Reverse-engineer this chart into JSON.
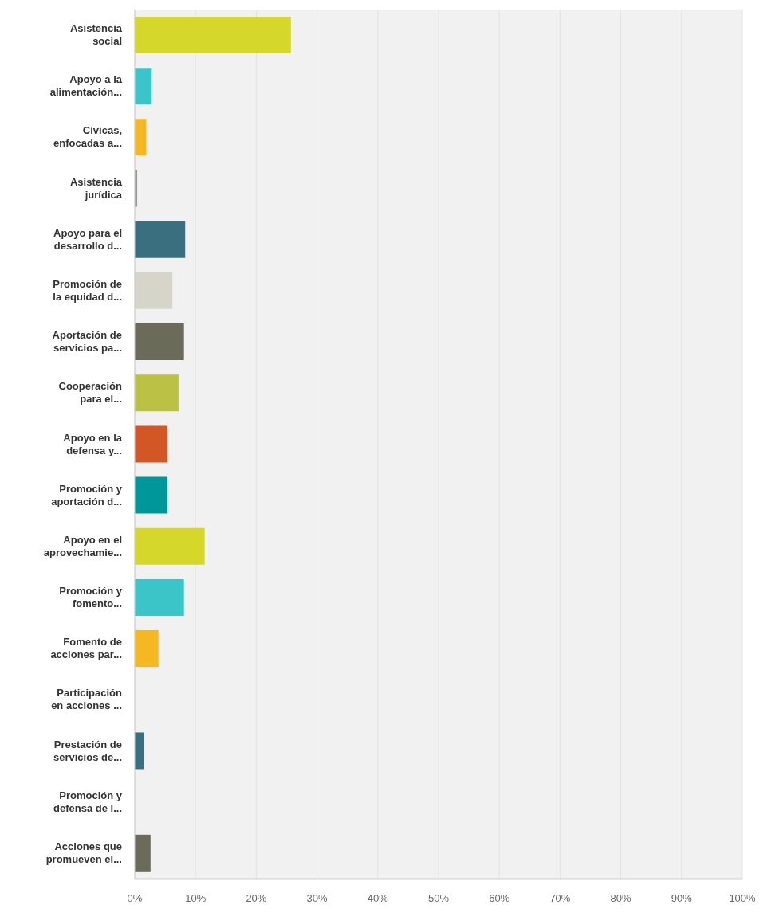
{
  "chart_data": {
    "type": "bar",
    "orientation": "horizontal",
    "categories": [
      "Asistencia social",
      "Apoyo a la alimentación...",
      "Cívicas, enfocadas a...",
      "Asistencia jurídica",
      "Apoyo para el desarrollo d...",
      "Promoción de la equidad d...",
      "Aportación de servicios pa...",
      "Cooperación para el...",
      "Apoyo en la defensa y...",
      "Promoción y aportación d...",
      "Apoyo en el aprovechamie...",
      "Promoción y fomento...",
      "Fomento de acciones par...",
      "Participación en acciones ...",
      "Prestación de servicios de...",
      "Promoción y defensa de l...",
      "Acciones que promueven el..."
    ],
    "values": [
      25.7,
      2.8,
      1.9,
      0.4,
      8.3,
      6.2,
      8.1,
      7.2,
      5.4,
      5.4,
      11.5,
      8.1,
      3.9,
      0,
      1.5,
      0,
      2.6
    ],
    "colors": [
      "#d5d82b",
      "#3cc5c8",
      "#f6b822",
      "#999999",
      "#3a6f80",
      "#d5d5c9",
      "#6b6b5a",
      "#bac144",
      "#d35627",
      "#00979a",
      "#d5d82b",
      "#3cc5c8",
      "#f6b822",
      "#999999",
      "#3a6f80",
      "#d5d5c9",
      "#6b6b5a"
    ],
    "xlim": [
      0,
      100
    ],
    "xticks": [
      {
        "value": 0,
        "label": "0%"
      },
      {
        "value": 10,
        "label": "10%"
      },
      {
        "value": 20,
        "label": "20%"
      },
      {
        "value": 30,
        "label": "30%"
      },
      {
        "value": 40,
        "label": "40%"
      },
      {
        "value": 50,
        "label": "50%"
      },
      {
        "value": 60,
        "label": "60%"
      },
      {
        "value": 70,
        "label": "70%"
      },
      {
        "value": 80,
        "label": "80%"
      },
      {
        "value": 90,
        "label": "90%"
      },
      {
        "value": 100,
        "label": "100%"
      }
    ],
    "grid": "x",
    "legend": false
  }
}
